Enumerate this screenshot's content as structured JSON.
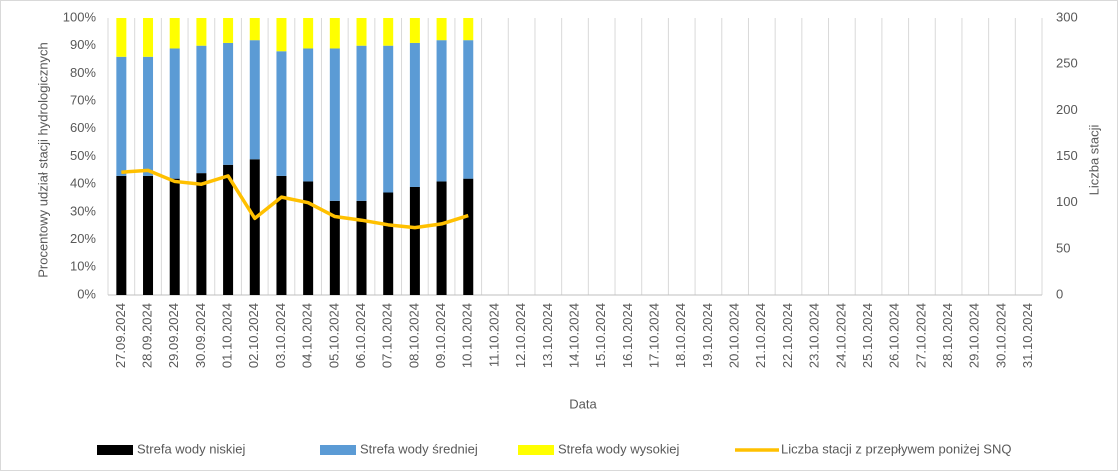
{
  "chart_data": {
    "type": "bar",
    "stacked": true,
    "xlabel": "Data",
    "ylabel": "Procentowy udział stacji hydrologicznych",
    "y2label": "Liczba stacji",
    "categories": [
      "27.09.2024",
      "28.09.2024",
      "29.09.2024",
      "30.09.2024",
      "01.10.2024",
      "02.10.2024",
      "03.10.2024",
      "04.10.2024",
      "05.10.2024",
      "06.10.2024",
      "07.10.2024",
      "08.10.2024",
      "09.10.2024",
      "10.10.2024",
      "11.10.2024",
      "12.10.2024",
      "13.10.2024",
      "14.10.2024",
      "15.10.2024",
      "16.10.2024",
      "17.10.2024",
      "18.10.2024",
      "19.10.2024",
      "20.10.2024",
      "21.10.2024",
      "22.10.2024",
      "23.10.2024",
      "24.10.2024",
      "25.10.2024",
      "26.10.2024",
      "27.10.2024",
      "28.10.2024",
      "29.10.2024",
      "30.10.2024",
      "31.10.2024"
    ],
    "series": [
      {
        "name": "Strefa wody niskiej",
        "color": "#000000",
        "values": [
          43,
          43,
          42,
          44,
          47,
          49,
          43,
          41,
          34,
          34,
          37,
          39,
          41,
          42,
          null,
          null,
          null,
          null,
          null,
          null,
          null,
          null,
          null,
          null,
          null,
          null,
          null,
          null,
          null,
          null,
          null,
          null,
          null,
          null,
          null
        ]
      },
      {
        "name": "Strefa wody średniej",
        "color": "#5b9bd5",
        "values": [
          43,
          43,
          47,
          46,
          44,
          43,
          45,
          48,
          55,
          56,
          53,
          52,
          51,
          50,
          null,
          null,
          null,
          null,
          null,
          null,
          null,
          null,
          null,
          null,
          null,
          null,
          null,
          null,
          null,
          null,
          null,
          null,
          null,
          null,
          null
        ]
      },
      {
        "name": "Strefa wody wysokiej",
        "color": "#ffff00",
        "values": [
          14,
          14,
          11,
          10,
          9,
          8,
          12,
          11,
          11,
          10,
          10,
          9,
          8,
          8,
          null,
          null,
          null,
          null,
          null,
          null,
          null,
          null,
          null,
          null,
          null,
          null,
          null,
          null,
          null,
          null,
          null,
          null,
          null,
          null,
          null
        ]
      },
      {
        "name": "Liczba stacji z przepływem poniżej SNQ",
        "color": "#ffc000",
        "type": "line",
        "axis": "y2",
        "values": [
          133,
          135,
          123,
          120,
          129,
          83,
          106,
          100,
          85,
          81,
          76,
          73,
          77,
          86,
          null,
          null,
          null,
          null,
          null,
          null,
          null,
          null,
          null,
          null,
          null,
          null,
          null,
          null,
          null,
          null,
          null,
          null,
          null,
          null,
          null
        ]
      }
    ],
    "ylim": [
      0,
      100
    ],
    "yticks": [
      {
        "value": 0,
        "label": "0%"
      },
      {
        "value": 10,
        "label": "10%"
      },
      {
        "value": 20,
        "label": "20%"
      },
      {
        "value": 30,
        "label": "30%"
      },
      {
        "value": 40,
        "label": "40%"
      },
      {
        "value": 50,
        "label": "50%"
      },
      {
        "value": 60,
        "label": "60%"
      },
      {
        "value": 70,
        "label": "70%"
      },
      {
        "value": 80,
        "label": "80%"
      },
      {
        "value": 90,
        "label": "90%"
      },
      {
        "value": 100,
        "label": "100%"
      }
    ],
    "y2lim": [
      0,
      300
    ],
    "y2ticks": [
      0,
      50,
      100,
      150,
      200,
      250,
      300
    ],
    "grid": "x",
    "legend": "bottom"
  }
}
